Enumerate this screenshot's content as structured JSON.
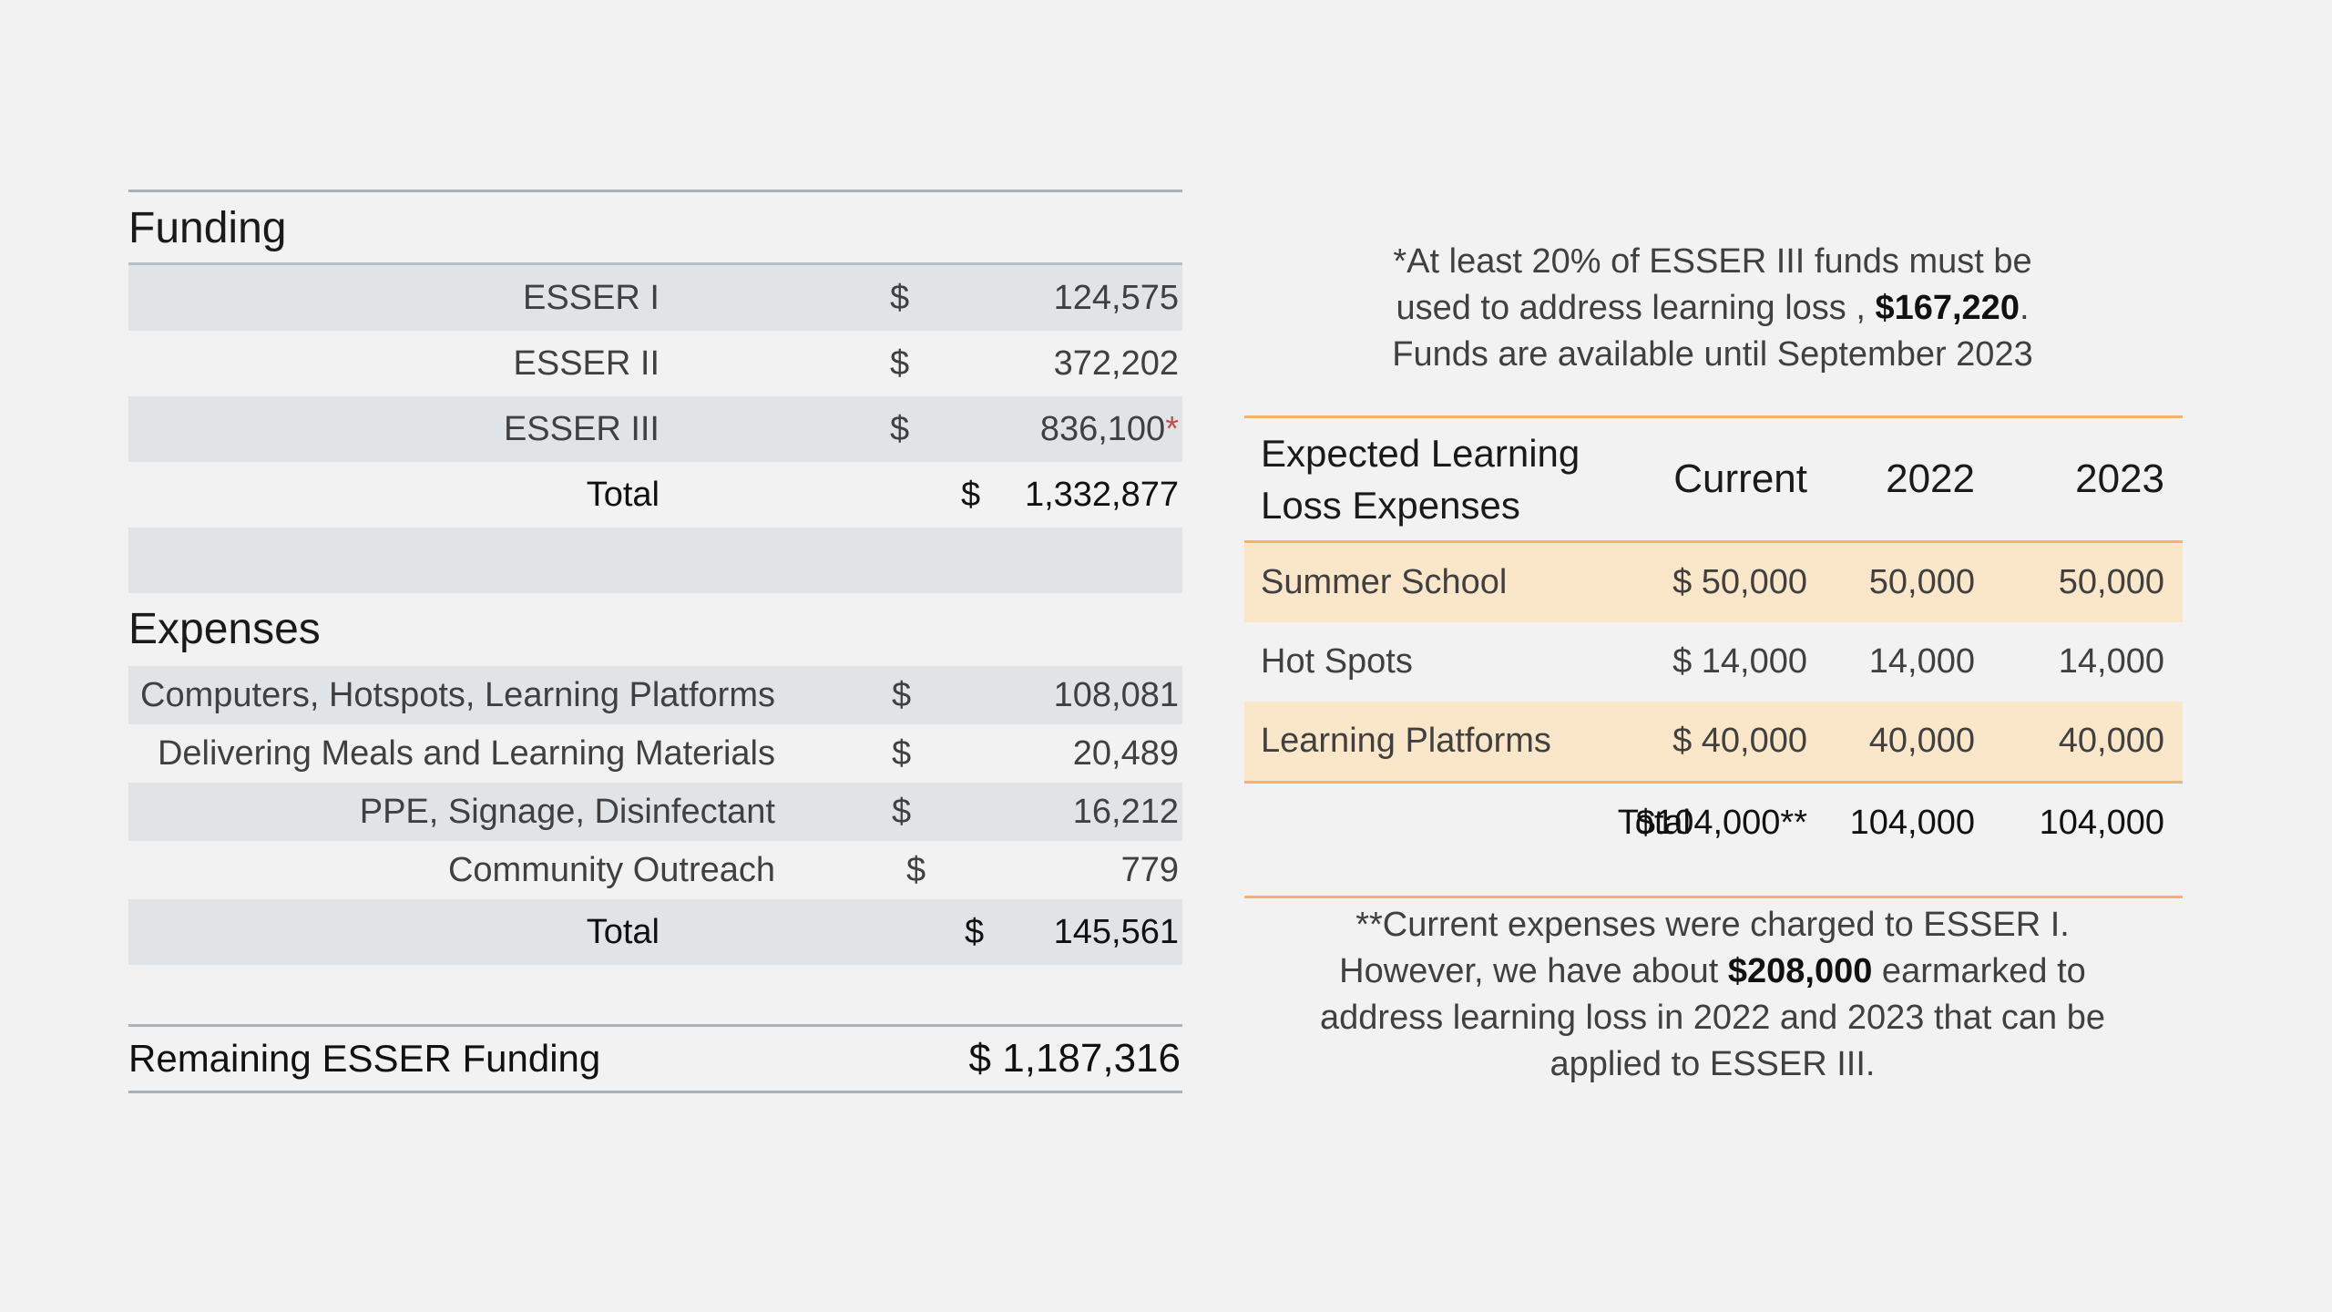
{
  "funding": {
    "title": "Funding",
    "rows": [
      {
        "label": "ESSER I",
        "currency": "$",
        "value": "124,575"
      },
      {
        "label": "ESSER II",
        "currency": "$",
        "value": "372,202"
      },
      {
        "label": "ESSER III",
        "currency": "$",
        "value": "836,100",
        "marker": "*"
      }
    ],
    "total": {
      "label": "Total",
      "currency": "$",
      "value": "1,332,877"
    }
  },
  "expenses": {
    "title": "Expenses",
    "rows": [
      {
        "label": "Computers, Hotspots, Learning Platforms",
        "currency": "$",
        "value": "108,081"
      },
      {
        "label": "Delivering Meals and Learning Materials",
        "currency": "$",
        "value": "20,489"
      },
      {
        "label": "PPE, Signage, Disinfectant",
        "currency": "$",
        "value": "16,212"
      },
      {
        "label": "Community Outreach",
        "currency": "$",
        "value": "779"
      }
    ],
    "total": {
      "label": "Total",
      "currency": "$",
      "value": "145,561"
    }
  },
  "remaining": {
    "label": "Remaining ESSER Funding",
    "value": "$ 1,187,316"
  },
  "note_top": {
    "line1": "*At least 20% of ESSER III funds must be",
    "line2_pre": "used to address learning loss , ",
    "line2_bold": "$167,220",
    "line2_post": ".",
    "line3": "Funds are available until September 2023"
  },
  "learning_loss": {
    "header": {
      "name_line1": "Expected Learning",
      "name_line2": "Loss Expenses",
      "current": "Current",
      "y2022": "2022",
      "y2023": "2023"
    },
    "rows": [
      {
        "name": "Summer School",
        "current": "$ 50,000",
        "y2022": "50,000",
        "y2023": "50,000"
      },
      {
        "name": "Hot Spots",
        "current": "$ 14,000",
        "y2022": "14,000",
        "y2023": "14,000"
      },
      {
        "name": "Learning Platforms",
        "current": "$ 40,000",
        "y2022": "40,000",
        "y2023": "40,000"
      }
    ],
    "total": {
      "label": "Total",
      "current": "$104,000**",
      "y2022": "104,000",
      "y2023": "104,000"
    }
  },
  "note_bottom": {
    "line1": "**Current expenses were charged to ESSER I.",
    "line2_pre": "However, we have about ",
    "line2_bold": "$208,000",
    "line2_post": " earmarked to",
    "line3": "address learning loss in 2022 and 2023 that can be",
    "line4": "applied to ESSER III."
  },
  "colors": {
    "background": "#f2f2f2",
    "gray_band": "#e1e4e6",
    "orange_rule": "#f4b26a",
    "peach_band": "#fae6c9",
    "asterisk": "#c0504d"
  }
}
